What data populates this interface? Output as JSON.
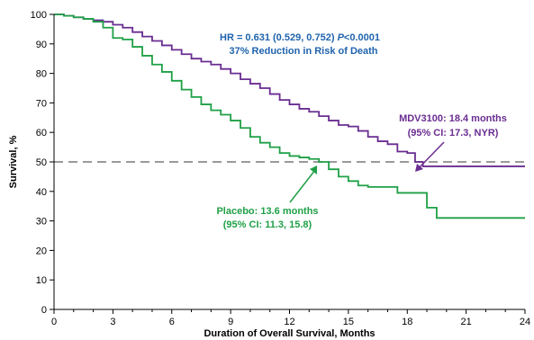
{
  "chart_data": {
    "type": "line",
    "xlabel": "Duration of Overall Survival, Months",
    "ylabel": "Survival, %",
    "xlim": [
      0,
      24
    ],
    "ylim": [
      0,
      100
    ],
    "x_ticks": [
      0,
      3,
      6,
      9,
      12,
      15,
      18,
      21,
      24
    ],
    "y_ticks": [
      0,
      10,
      20,
      30,
      40,
      50,
      60,
      70,
      80,
      90,
      100
    ],
    "grid": false,
    "reference_line": {
      "y": 50,
      "style": "dashed",
      "color": "#9a9a9a"
    },
    "colors": {
      "mdv": "#6a2d91",
      "placebo": "#1fa046",
      "hr": "#1f63ad"
    },
    "series": [
      {
        "name": "MDV3100",
        "color": "#6a2d91",
        "x": [
          0,
          0.5,
          1,
          1.5,
          2,
          2.5,
          3,
          3.5,
          4,
          4.5,
          5,
          5.5,
          6,
          6.5,
          7,
          7.5,
          8,
          8.5,
          9,
          9.5,
          10,
          10.5,
          11,
          11.5,
          12,
          12.5,
          13,
          13.5,
          14,
          14.5,
          15,
          15.5,
          16,
          16.5,
          17,
          17.5,
          18,
          18.4,
          18.8,
          19.5,
          20,
          21,
          22,
          23,
          24
        ],
        "y": [
          100,
          99.5,
          99,
          98.5,
          98,
          97.5,
          96.5,
          95.5,
          94,
          92.5,
          91,
          89.5,
          88,
          86.5,
          85,
          84,
          83,
          81.5,
          80,
          78,
          76.5,
          75,
          73,
          71,
          69.5,
          68,
          67,
          65.5,
          64,
          62.5,
          62,
          60.5,
          58.5,
          57,
          56,
          53.5,
          53,
          50,
          48.5,
          48.5,
          48.5,
          48.5,
          48.5,
          48.5,
          48.5
        ]
      },
      {
        "name": "Placebo",
        "color": "#1fa046",
        "x": [
          0,
          0.5,
          1,
          1.5,
          2,
          2.5,
          3,
          3.5,
          4,
          4.5,
          5,
          5.5,
          6,
          6.5,
          7,
          7.5,
          8,
          8.5,
          9,
          9.5,
          10,
          10.5,
          11,
          11.5,
          12,
          12.5,
          13,
          13.5,
          14,
          14.5,
          15,
          15.5,
          16,
          16.5,
          17,
          17.5,
          18,
          18.5,
          19,
          19.5,
          20,
          21,
          22,
          23,
          24
        ],
        "y": [
          100,
          99.5,
          99,
          98.5,
          97.5,
          95.5,
          92,
          91.5,
          89,
          86,
          83,
          80.5,
          77.5,
          74.5,
          72,
          69.5,
          67.5,
          66,
          64,
          61.5,
          58.5,
          56.5,
          55,
          53,
          52,
          51.5,
          51,
          50,
          47.5,
          45,
          43.5,
          42,
          41.5,
          41.5,
          41.5,
          39.5,
          39.5,
          39.5,
          34.5,
          31,
          31,
          31,
          31,
          31,
          31
        ]
      }
    ],
    "annotations": {
      "hr_line1_prefix": "HR = 0.631 (0.529, 0.752) ",
      "hr_line1_p": "P",
      "hr_line1_suffix": "<0.0001",
      "hr_line2": "37% Reduction in Risk of Death",
      "mdv_line1": "MDV3100:  18.4 months",
      "mdv_line2": "(95% CI: 17.3, NYR)",
      "placebo_line1": "Placebo: 13.6 months",
      "placebo_line2": "(95% CI: 11.3, 15.8)"
    }
  }
}
